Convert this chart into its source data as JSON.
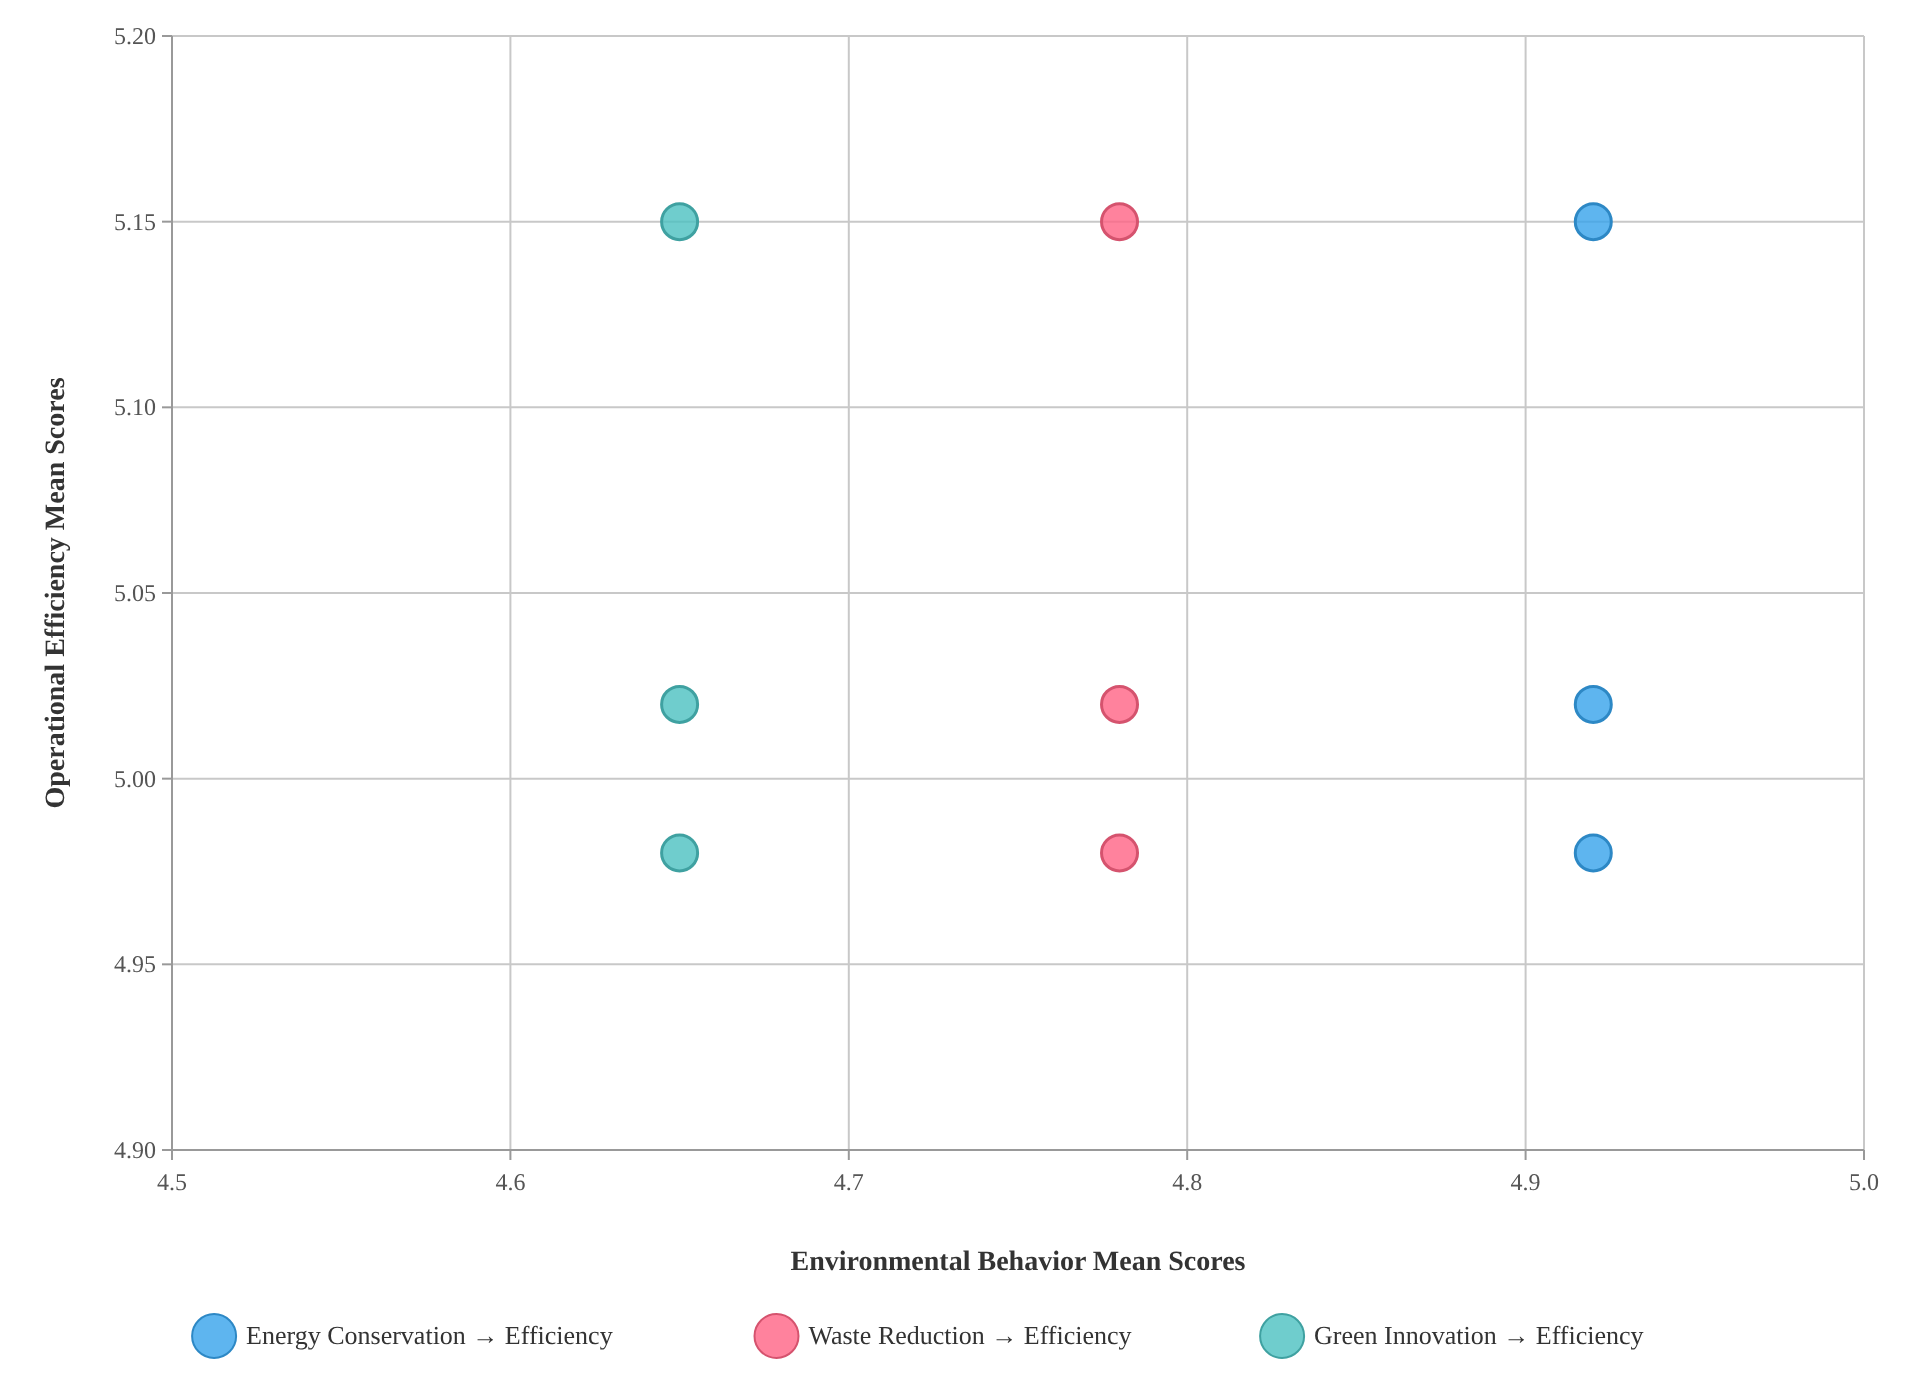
{
  "chart_data": {
    "type": "scatter",
    "xlabel": "Environmental Behavior Mean Scores",
    "ylabel": "Operational Efficiency Mean Scores",
    "xlim": [
      4.5,
      5.0
    ],
    "xticks": [
      {
        "value": 4.5,
        "label": "4.5"
      },
      {
        "value": 4.6,
        "label": "4.6"
      },
      {
        "value": 4.7,
        "label": "4.7"
      },
      {
        "value": 4.8,
        "label": "4.8"
      },
      {
        "value": 4.9,
        "label": "4.9"
      },
      {
        "value": 5.0,
        "label": "5.0"
      }
    ],
    "ylim": [
      4.9,
      5.2
    ],
    "yticks": [
      {
        "value": 4.9,
        "label": "4.90"
      },
      {
        "value": 4.95,
        "label": "4.95"
      },
      {
        "value": 5.0,
        "label": "5.00"
      },
      {
        "value": 5.05,
        "label": "5.05"
      },
      {
        "value": 5.1,
        "label": "5.10"
      },
      {
        "value": 5.15,
        "label": "5.15"
      },
      {
        "value": 5.2,
        "label": "5.20"
      }
    ],
    "grid": true,
    "legend": "bottom",
    "marker": "circle",
    "series": [
      {
        "name": "Energy Conservation → Efficiency",
        "color": "#36a2eb",
        "x": [
          4.92,
          4.92,
          4.92
        ],
        "values": [
          5.15,
          5.02,
          4.98
        ]
      },
      {
        "name": "Waste Reduction → Efficiency",
        "color": "#ff6384",
        "x": [
          4.78,
          4.78,
          4.78
        ],
        "values": [
          5.15,
          5.02,
          4.98
        ]
      },
      {
        "name": "Green Innovation → Efficiency",
        "color": "#4bc0c0",
        "x": [
          4.65,
          4.65,
          4.65
        ],
        "values": [
          5.15,
          5.02,
          4.98
        ]
      }
    ]
  }
}
